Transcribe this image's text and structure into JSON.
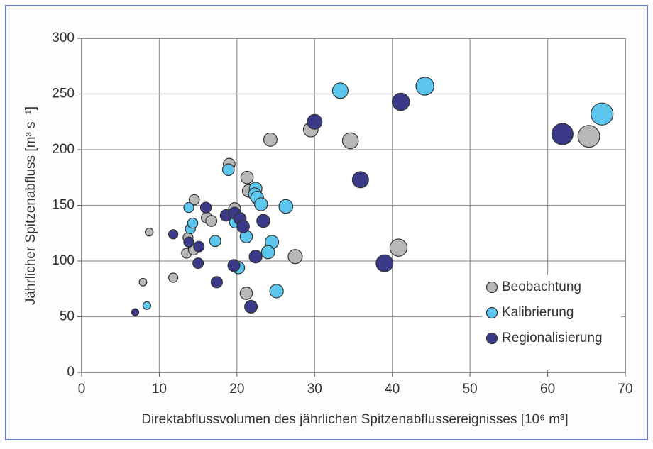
{
  "chart_data": {
    "type": "scatter",
    "xlabel": "Direktabflussvolumen des jährlichen Spitzenabflussereignisses [10⁶ m³]",
    "ylabel": "Jährlicher Spitzenabfluss [m³ s⁻¹]",
    "xlim": [
      0,
      70
    ],
    "xticks": [
      0,
      10,
      20,
      30,
      40,
      50,
      60,
      70
    ],
    "ylim": [
      0,
      300
    ],
    "yticks": [
      0,
      50,
      100,
      150,
      200,
      250,
      300
    ],
    "grid": true,
    "legend": "lower right",
    "series": [
      {
        "name": "Beobachtung",
        "color": "#b8b8b8",
        "x": [
          8.7,
          7.9,
          11.8,
          14.5,
          16.1,
          16.7,
          13.7,
          13.5,
          14.4,
          19,
          19.7,
          19.6,
          21.3,
          21.5,
          21.2,
          24.3,
          27.5,
          29.5,
          34.6,
          40.8,
          65.3
        ],
        "values": [
          126,
          81,
          85,
          155,
          139,
          136,
          121,
          107,
          110,
          187,
          147,
          142,
          175,
          163,
          71,
          209,
          104,
          218,
          208,
          112,
          212
        ]
      },
      {
        "name": "Kalibrierung",
        "color": "#5cc6ef",
        "x": [
          8.4,
          13.8,
          14,
          14.3,
          17.2,
          18.9,
          19.8,
          20.2,
          21.2,
          22.4,
          22.3,
          22.6,
          23.1,
          24.5,
          24,
          25.1,
          26.3,
          33.3,
          44.2,
          67
        ],
        "values": [
          60,
          148,
          129,
          134,
          118,
          182,
          135,
          94,
          122,
          165,
          160,
          157,
          151,
          117,
          108,
          73,
          149,
          253,
          257,
          232
        ]
      },
      {
        "name": "Regionalisierung",
        "color": "#3b3a88",
        "x": [
          6.9,
          11.8,
          13.8,
          15.1,
          15,
          16,
          17.4,
          18.6,
          19.7,
          20.4,
          20.8,
          23.4,
          22.4,
          19.6,
          21.8,
          30,
          35.9,
          39,
          41.1,
          61.9
        ],
        "values": [
          54,
          124,
          117,
          113,
          98,
          148,
          81,
          141,
          143,
          138,
          131,
          136,
          104,
          96,
          59,
          225,
          173,
          98,
          243,
          214
        ]
      }
    ]
  }
}
